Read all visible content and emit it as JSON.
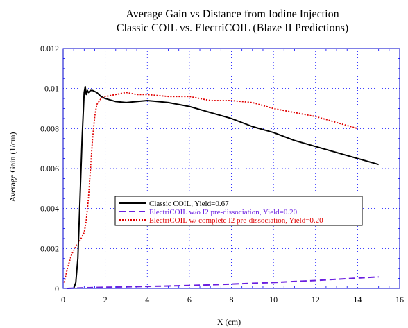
{
  "chart_data": {
    "type": "line",
    "title": "Average Gain vs  Distance from Iodine Injection",
    "subtitle": "Classic COIL vs. ElectriCOIL (Blaze II Predictions)",
    "xlabel": "X (cm)",
    "ylabel": "Average Gain  (1/cm)",
    "xlim": [
      0,
      16
    ],
    "ylim": [
      0,
      0.012
    ],
    "x_ticks": [
      "0",
      "2",
      "4",
      "6",
      "8",
      "10",
      "12",
      "14",
      "16"
    ],
    "y_ticks": [
      "0",
      "0.002",
      "0.004",
      "0.006",
      "0.008",
      "0.01",
      "0.012"
    ],
    "grid": true,
    "legend_position": "center-right",
    "series": [
      {
        "name": "Classic COIL, Yield=0.67",
        "color": "#000000",
        "style": "solid",
        "x": [
          0.5,
          0.6,
          0.7,
          0.8,
          0.9,
          1.0,
          1.05,
          1.1,
          1.15,
          1.2,
          1.3,
          1.4,
          1.6,
          1.8,
          2.0,
          2.5,
          3.0,
          3.5,
          4.0,
          4.5,
          5.0,
          6.0,
          7.0,
          8.0,
          9.0,
          10.0,
          11.0,
          12.0,
          13.0,
          14.0,
          15.0
        ],
        "y": [
          0.0,
          0.0003,
          0.0015,
          0.0045,
          0.0075,
          0.0098,
          0.0101,
          0.0097,
          0.0099,
          0.0098,
          0.0099,
          0.0099,
          0.0098,
          0.0096,
          0.0095,
          0.00935,
          0.0093,
          0.00935,
          0.0094,
          0.00935,
          0.0093,
          0.0091,
          0.0088,
          0.0085,
          0.0081,
          0.0078,
          0.0074,
          0.0071,
          0.0068,
          0.0065,
          0.0062
        ]
      },
      {
        "name": "ElectriCOIL w/o I2 pre-dissociation, Yield=0.20",
        "color": "#6a1ee0",
        "style": "dashed",
        "x": [
          0.2,
          1,
          2,
          3,
          4,
          5,
          6,
          7,
          8,
          9,
          10,
          11,
          12,
          13,
          14,
          15
        ],
        "y": [
          0.0,
          3e-05,
          6e-05,
          8e-05,
          0.0001,
          0.00012,
          0.00015,
          0.00018,
          0.00022,
          0.00026,
          0.0003,
          0.00035,
          0.0004,
          0.00046,
          0.00052,
          0.00058
        ]
      },
      {
        "name": "ElectriCOIL w/ complete I2 pre-dissociation, Yield=0.20",
        "color": "#e00000",
        "style": "dotted",
        "x": [
          0.05,
          0.2,
          0.4,
          0.6,
          0.8,
          1.0,
          1.1,
          1.2,
          1.3,
          1.4,
          1.5,
          1.6,
          1.8,
          2.0,
          2.5,
          3.0,
          3.5,
          4.0,
          5.0,
          6.0,
          7.0,
          8.0,
          9.0,
          10.0,
          11.0,
          12.0,
          13.0,
          14.0
        ],
        "y": [
          0.0003,
          0.001,
          0.0017,
          0.0021,
          0.0024,
          0.0028,
          0.0034,
          0.0045,
          0.006,
          0.0075,
          0.0086,
          0.0092,
          0.0095,
          0.0096,
          0.0097,
          0.0098,
          0.0097,
          0.0097,
          0.0096,
          0.0096,
          0.0094,
          0.0094,
          0.0093,
          0.009,
          0.0088,
          0.0086,
          0.0083,
          0.008
        ]
      }
    ]
  },
  "colors": {
    "frame": "#0000cc",
    "grid": "#0000ff"
  }
}
